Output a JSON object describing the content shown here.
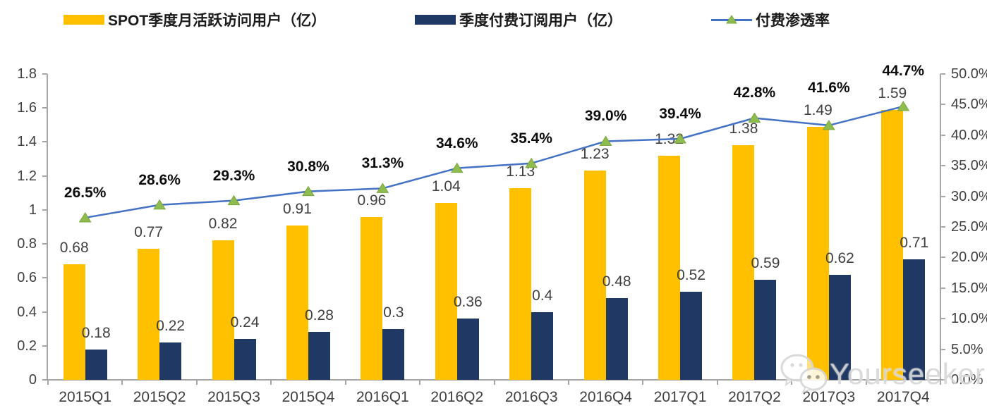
{
  "chart_data": {
    "type": "bar+line combo",
    "categories": [
      "2015Q1",
      "2015Q2",
      "2015Q3",
      "2015Q4",
      "2016Q1",
      "2016Q2",
      "2016Q3",
      "2016Q4",
      "2017Q1",
      "2017Q2",
      "2017Q3",
      "2017Q4"
    ],
    "series": [
      {
        "name": "SPOT季度月活跃访问用户（亿）",
        "type": "bar",
        "axis": "left",
        "color": "#FFC000",
        "values": [
          0.68,
          0.77,
          0.82,
          0.91,
          0.96,
          1.04,
          1.13,
          1.23,
          1.32,
          1.38,
          1.49,
          1.59
        ]
      },
      {
        "name": "季度付费订阅用户（亿）",
        "type": "bar",
        "axis": "left",
        "color": "#1F3864",
        "values": [
          0.18,
          0.22,
          0.24,
          0.28,
          0.3,
          0.36,
          0.4,
          0.48,
          0.52,
          0.59,
          0.62,
          0.71
        ]
      },
      {
        "name": "付费渗透率",
        "type": "line",
        "axis": "right",
        "color": "#4472C4",
        "marker": "triangle",
        "marker_color": "#8FBC4F",
        "values_percent": [
          26.5,
          28.6,
          29.3,
          30.8,
          31.3,
          34.6,
          35.4,
          39.0,
          39.4,
          42.8,
          41.6,
          44.7
        ]
      }
    ],
    "left_axis": {
      "min": 0,
      "max": 1.8,
      "tick_labels": [
        "0",
        "0.2",
        "0.4",
        "0.6",
        "0.8",
        "1",
        "1.2",
        "1.4",
        "1.6",
        "1.8"
      ]
    },
    "right_axis": {
      "min": 0,
      "max": 50,
      "tick_labels": [
        "0.0%",
        "5.0%",
        "10.0%",
        "15.0%",
        "20.0%",
        "25.0%",
        "30.0%",
        "35.0%",
        "40.0%",
        "45.0%",
        "50.0%"
      ]
    },
    "grid": false,
    "legend_position": "top",
    "title": "",
    "xlabel": "",
    "ylabel": ""
  },
  "watermark": {
    "text": "Yourseeker",
    "icon": "wechat-chat-bubbles-icon"
  },
  "colors": {
    "bar_mau": "#FFC000",
    "bar_subs": "#1F3864",
    "line_blue": "#4472C4",
    "marker_green": "#8FBC4F",
    "axis_gray": "#A6A6A6",
    "label_dark": "#404040"
  }
}
